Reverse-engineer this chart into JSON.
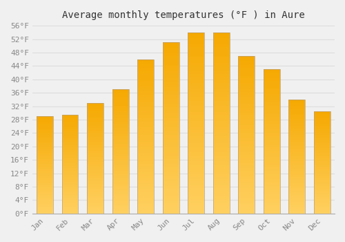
{
  "title": "Average monthly temperatures (°F ) in Aure",
  "months": [
    "Jan",
    "Feb",
    "Mar",
    "Apr",
    "May",
    "Jun",
    "Jul",
    "Aug",
    "Sep",
    "Oct",
    "Nov",
    "Dec"
  ],
  "values": [
    29.0,
    29.5,
    33.0,
    37.0,
    46.0,
    51.0,
    54.0,
    54.0,
    47.0,
    43.0,
    34.0,
    30.5
  ],
  "bar_color_top": "#F5A800",
  "bar_color_bottom": "#FFD060",
  "bar_edge_color": "#B8A080",
  "background_color": "#F0F0F0",
  "grid_color": "#DDDDDD",
  "ylim": [
    0,
    56
  ],
  "ytick_step": 4,
  "title_fontsize": 10,
  "tick_fontsize": 8,
  "font_family": "monospace",
  "title_color": "#333333",
  "tick_color": "#888888"
}
